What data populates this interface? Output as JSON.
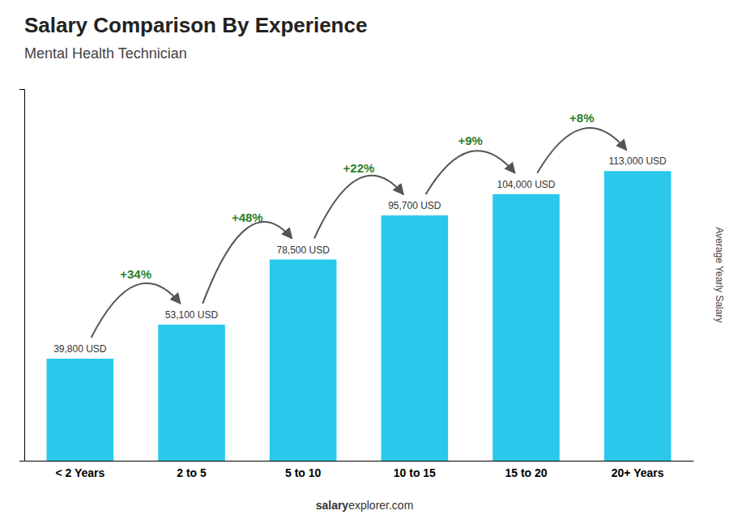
{
  "chart_data": {
    "type": "bar",
    "title": "Salary Comparison By Experience",
    "subtitle": "Mental Health Technician",
    "ylabel": "Average Yearly Salary",
    "categories": [
      "< 2 Years",
      "2 to 5",
      "5 to 10",
      "10 to 15",
      "15 to 20",
      "20+ Years"
    ],
    "values": [
      39800,
      53100,
      78500,
      95700,
      104000,
      113000
    ],
    "value_labels": [
      "39,800 USD",
      "53,100 USD",
      "78,500 USD",
      "95,700 USD",
      "104,000 USD",
      "113,000 USD"
    ],
    "data_labels": true,
    "annotations": [
      null,
      "+34%",
      "+48%",
      "+22%",
      "+9%",
      "+8%"
    ],
    "footer": [
      "salary",
      "explorer.com"
    ],
    "color": "#2ac8eb",
    "ylim": [
      0,
      145000
    ],
    "tick_labels": "x",
    "grid": false
  }
}
